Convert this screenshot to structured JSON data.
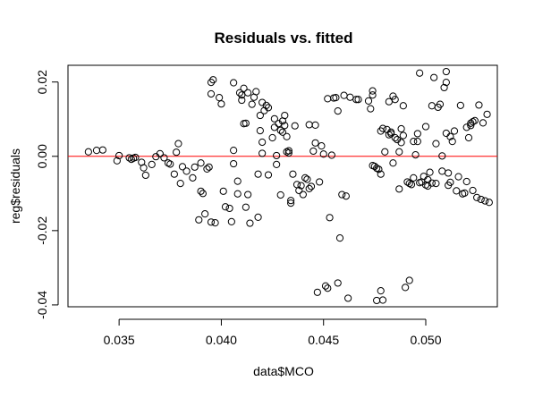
{
  "chart_data": {
    "type": "scatter",
    "title": "Residuals vs. fitted",
    "xlabel": "data$MCO",
    "ylabel": "reg$residuals",
    "xlim": [
      0.0325,
      0.0535
    ],
    "ylim": [
      -0.0405,
      0.0245
    ],
    "x_ticks": [
      0.035,
      0.04,
      0.045,
      0.05
    ],
    "x_tick_labels": [
      "0.035",
      "0.040",
      "0.045",
      "0.050"
    ],
    "y_ticks": [
      -0.04,
      -0.02,
      0.0,
      0.02
    ],
    "y_tick_labels": [
      "-0.04",
      "-0.02",
      "0.00",
      "0.02"
    ],
    "reference_line": {
      "y": 0.0,
      "color": "#ff0000"
    },
    "grid": false,
    "colors": {
      "points": "#000000",
      "reference": "#ff0000"
    },
    "points": [
      [
        0.0335,
        0.0012
      ],
      [
        0.0339,
        0.0016
      ],
      [
        0.0342,
        0.0017
      ],
      [
        0.0349,
        -0.0012
      ],
      [
        0.035,
        0.0002
      ],
      [
        0.0355,
        -0.0004
      ],
      [
        0.0356,
        -0.0008
      ],
      [
        0.0357,
        -0.0005
      ],
      [
        0.0358,
        -0.0003
      ],
      [
        0.0361,
        -0.0016
      ],
      [
        0.0362,
        -0.0031
      ],
      [
        0.0363,
        -0.0051
      ],
      [
        0.0366,
        -0.0022
      ],
      [
        0.0368,
        -0.0001
      ],
      [
        0.037,
        0.0007
      ],
      [
        0.0372,
        -0.0004
      ],
      [
        0.0374,
        -0.0018
      ],
      [
        0.0375,
        -0.0021
      ],
      [
        0.0377,
        -0.0048
      ],
      [
        0.0378,
        0.0011
      ],
      [
        0.0379,
        0.0034
      ],
      [
        0.038,
        -0.0073
      ],
      [
        0.0381,
        -0.0028
      ],
      [
        0.0383,
        -0.004
      ],
      [
        0.0386,
        -0.0058
      ],
      [
        0.0387,
        -0.0029
      ],
      [
        0.0389,
        -0.0171
      ],
      [
        0.039,
        -0.0018
      ],
      [
        0.039,
        -0.0094
      ],
      [
        0.0391,
        -0.01
      ],
      [
        0.0392,
        -0.0155
      ],
      [
        0.0393,
        -0.0034
      ],
      [
        0.0394,
        -0.0029
      ],
      [
        0.0395,
        0.0199
      ],
      [
        0.0396,
        0.0206
      ],
      [
        0.0395,
        0.0168
      ],
      [
        0.0395,
        -0.0177
      ],
      [
        0.0397,
        -0.0179
      ],
      [
        0.0399,
        0.0158
      ],
      [
        0.04,
        0.0141
      ],
      [
        0.0401,
        -0.0094
      ],
      [
        0.0402,
        -0.0136
      ],
      [
        0.0404,
        -0.014
      ],
      [
        0.0405,
        -0.0176
      ],
      [
        0.0406,
        0.0016
      ],
      [
        0.0406,
        -0.002
      ],
      [
        0.0408,
        -0.0067
      ],
      [
        0.0406,
        0.0198
      ],
      [
        0.0408,
        -0.0101
      ],
      [
        0.0409,
        0.0171
      ],
      [
        0.041,
        0.0165
      ],
      [
        0.041,
        0.0151
      ],
      [
        0.0411,
        0.0183
      ],
      [
        0.0411,
        0.0088
      ],
      [
        0.0412,
        0.0089
      ],
      [
        0.0412,
        -0.0137
      ],
      [
        0.0413,
        0.0171
      ],
      [
        0.0413,
        -0.0103
      ],
      [
        0.0414,
        -0.018
      ],
      [
        0.0415,
        0.014
      ],
      [
        0.0416,
        0.0159
      ],
      [
        0.0417,
        0.0174
      ],
      [
        0.0418,
        -0.0164
      ],
      [
        0.0418,
        -0.0048
      ],
      [
        0.0419,
        0.011
      ],
      [
        0.0419,
        0.0069
      ],
      [
        0.042,
        0.0038
      ],
      [
        0.042,
        0.0145
      ],
      [
        0.042,
        0.0008
      ],
      [
        0.0421,
        0.0123
      ],
      [
        0.0422,
        0.0137
      ],
      [
        0.0423,
        0.0131
      ],
      [
        0.0423,
        -0.005
      ],
      [
        0.0425,
        0.005
      ],
      [
        0.0426,
        0.0101
      ],
      [
        0.0426,
        0.0078
      ],
      [
        0.0427,
        -0.0022
      ],
      [
        0.0427,
        0.0002
      ],
      [
        0.0428,
        0.0088
      ],
      [
        0.0429,
        -0.0104
      ],
      [
        0.0429,
        0.007
      ],
      [
        0.043,
        0.0095
      ],
      [
        0.043,
        0.0065
      ],
      [
        0.0431,
        0.011
      ],
      [
        0.0431,
        0.0083
      ],
      [
        0.0432,
        0.0053
      ],
      [
        0.0432,
        0.0012
      ],
      [
        0.0433,
        0.0015
      ],
      [
        0.0433,
        0.0009
      ],
      [
        0.0434,
        -0.0119
      ],
      [
        0.0434,
        -0.0126
      ],
      [
        0.0435,
        -0.0048
      ],
      [
        0.0436,
        0.0082
      ],
      [
        0.0437,
        -0.0076
      ],
      [
        0.0438,
        -0.0092
      ],
      [
        0.0439,
        -0.0079
      ],
      [
        0.044,
        -0.0103
      ],
      [
        0.0441,
        -0.0058
      ],
      [
        0.0442,
        -0.0062
      ],
      [
        0.0443,
        -0.0087
      ],
      [
        0.0443,
        0.0085
      ],
      [
        0.0444,
        -0.0081
      ],
      [
        0.0445,
        0.0014
      ],
      [
        0.0446,
        0.0036
      ],
      [
        0.0446,
        0.0084
      ],
      [
        0.0447,
        -0.0366
      ],
      [
        0.0448,
        -0.0069
      ],
      [
        0.0449,
        0.0028
      ],
      [
        0.045,
        0.0006
      ],
      [
        0.0451,
        -0.0349
      ],
      [
        0.0452,
        -0.0355
      ],
      [
        0.0452,
        0.0155
      ],
      [
        0.0453,
        -0.0165
      ],
      [
        0.0454,
        0.0003
      ],
      [
        0.0455,
        0.0157
      ],
      [
        0.0456,
        0.0158
      ],
      [
        0.0457,
        0.0122
      ],
      [
        0.0457,
        -0.0341
      ],
      [
        0.0458,
        -0.022
      ],
      [
        0.0459,
        -0.0103
      ],
      [
        0.046,
        0.0164
      ],
      [
        0.0461,
        -0.0107
      ],
      [
        0.0462,
        -0.0382
      ],
      [
        0.0463,
        0.0159
      ],
      [
        0.0466,
        0.0153
      ],
      [
        0.0467,
        0.0153
      ],
      [
        0.0472,
        0.0149
      ],
      [
        0.0473,
        0.0128
      ],
      [
        0.0474,
        -0.0025
      ],
      [
        0.0474,
        0.0176
      ],
      [
        0.0474,
        0.0165
      ],
      [
        0.0475,
        -0.0027
      ],
      [
        0.0476,
        -0.0388
      ],
      [
        0.0476,
        -0.0032
      ],
      [
        0.0477,
        -0.0035
      ],
      [
        0.0478,
        0.0068
      ],
      [
        0.0478,
        -0.0048
      ],
      [
        0.0478,
        -0.0362
      ],
      [
        0.0479,
        0.0075
      ],
      [
        0.0479,
        -0.0387
      ],
      [
        0.048,
        0.0012
      ],
      [
        0.0481,
        0.0072
      ],
      [
        0.0482,
        0.0058
      ],
      [
        0.0482,
        0.0147
      ],
      [
        0.0483,
        0.0065
      ],
      [
        0.0483,
        0.0061
      ],
      [
        0.0484,
        0.0162
      ],
      [
        0.0484,
        -0.0018
      ],
      [
        0.0485,
        0.0153
      ],
      [
        0.0485,
        0.005
      ],
      [
        0.0486,
        0.0045
      ],
      [
        0.0487,
        -0.0088
      ],
      [
        0.0487,
        0.0012
      ],
      [
        0.0488,
        0.0074
      ],
      [
        0.0488,
        0.0037
      ],
      [
        0.0489,
        0.0136
      ],
      [
        0.0489,
        0.0056
      ],
      [
        0.049,
        -0.0353
      ],
      [
        0.0491,
        -0.0069
      ],
      [
        0.0492,
        -0.0073
      ],
      [
        0.0492,
        -0.0334
      ],
      [
        0.0493,
        -0.0076
      ],
      [
        0.0494,
        0.004
      ],
      [
        0.0494,
        -0.0058
      ],
      [
        0.0495,
        0.0004
      ],
      [
        0.0496,
        0.004
      ],
      [
        0.0496,
        0.0061
      ],
      [
        0.0497,
        -0.0071
      ],
      [
        0.0497,
        0.0224
      ],
      [
        0.0498,
        -0.0069
      ],
      [
        0.0499,
        -0.0054
      ],
      [
        0.05,
        -0.0077
      ],
      [
        0.05,
        0.008
      ],
      [
        0.0501,
        -0.0063
      ],
      [
        0.0501,
        -0.008
      ],
      [
        0.0502,
        -0.0043
      ],
      [
        0.0503,
        0.0136
      ],
      [
        0.0503,
        -0.0072
      ],
      [
        0.0504,
        0.0212
      ],
      [
        0.0505,
        -0.0073
      ],
      [
        0.0505,
        0.0034
      ],
      [
        0.0506,
        0.0132
      ],
      [
        0.0507,
        0.014
      ],
      [
        0.0508,
        0.0001
      ],
      [
        0.0508,
        -0.004
      ],
      [
        0.0509,
        0.0185
      ],
      [
        0.051,
        0.0228
      ],
      [
        0.051,
        0.0062
      ],
      [
        0.051,
        0.0199
      ],
      [
        0.0511,
        -0.0045
      ],
      [
        0.0511,
        -0.0078
      ],
      [
        0.0512,
        0.0053
      ],
      [
        0.0512,
        -0.007
      ],
      [
        0.0513,
        0.004
      ],
      [
        0.0514,
        0.0068
      ],
      [
        0.0515,
        -0.0093
      ],
      [
        0.0516,
        -0.0055
      ],
      [
        0.0517,
        0.0137
      ],
      [
        0.0518,
        -0.0101
      ],
      [
        0.0519,
        -0.0099
      ],
      [
        0.052,
        -0.0068
      ],
      [
        0.052,
        0.0078
      ],
      [
        0.0521,
        0.005
      ],
      [
        0.0522,
        0.0083
      ],
      [
        0.0522,
        0.0089
      ],
      [
        0.0523,
        0.0093
      ],
      [
        0.0523,
        -0.0092
      ],
      [
        0.0524,
        0.0096
      ],
      [
        0.0525,
        -0.0111
      ],
      [
        0.0526,
        0.0138
      ],
      [
        0.0527,
        -0.0116
      ],
      [
        0.0528,
        0.009
      ],
      [
        0.0529,
        -0.012
      ],
      [
        0.053,
        0.0113
      ],
      [
        0.0531,
        -0.0124
      ]
    ]
  }
}
